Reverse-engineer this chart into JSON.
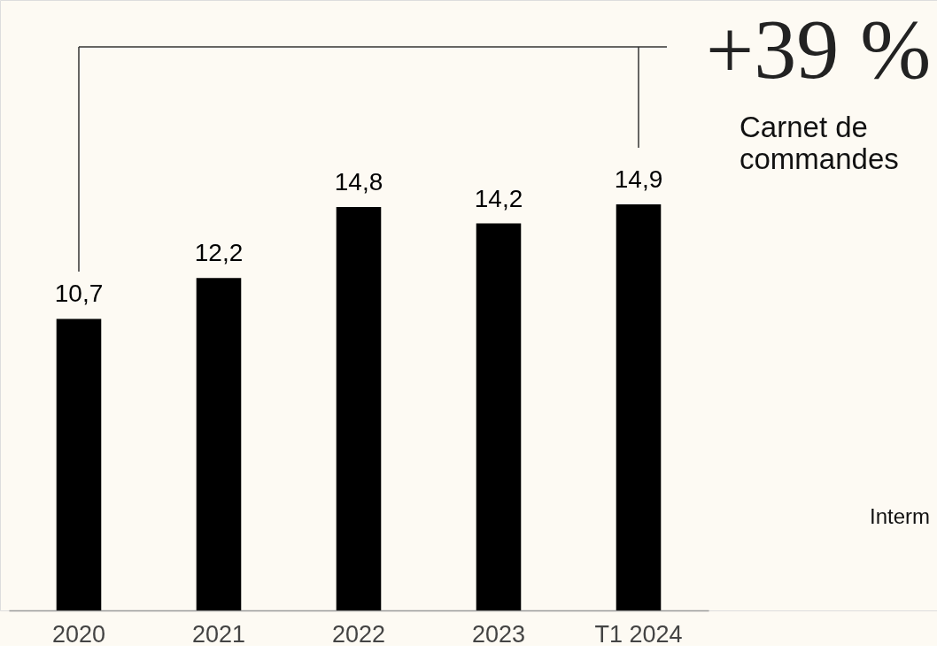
{
  "chart_data": {
    "type": "bar",
    "categories": [
      "2020",
      "2021",
      "2022",
      "2023",
      "T1 2024"
    ],
    "values": [
      10.7,
      12.2,
      14.8,
      14.2,
      14.9
    ],
    "value_labels": [
      "10,7",
      "12,2",
      "14,8",
      "14,2",
      "14,9"
    ],
    "color": "#000000",
    "annotations": [
      "+39 %",
      "Carnet de commandes",
      "Interm"
    ],
    "tick_labels": "x"
  }
}
